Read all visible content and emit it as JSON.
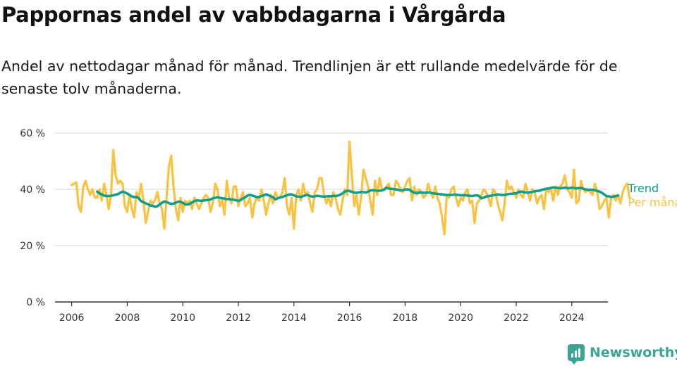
{
  "header": {
    "title": "Pappornas andel av vabbdagarna i Vårgårda",
    "subtitle": "Andel av nettodagar månad för månad. Trendlinjen är ett rullande medelvärde för de senaste tolv månaderna."
  },
  "footer": {
    "brand": "Newsworthy",
    "brand_icon": "bar-chart-speech-bubble-icon"
  },
  "colors": {
    "trend": "#139e8c",
    "monthly": "#f9c240",
    "grid": "#dddddd",
    "axis": "#333333",
    "brand": "#3aa594"
  },
  "chart_data": {
    "type": "line",
    "x_unit": "year (decimal)",
    "xlim": [
      2005.4,
      2025.3
    ],
    "ylim": [
      0,
      60
    ],
    "x_ticks": [
      "2006",
      "2008",
      "2010",
      "2012",
      "2014",
      "2016",
      "2018",
      "2020",
      "2022",
      "2024"
    ],
    "y_ticks": [
      "0 %",
      "20 %",
      "40 %",
      "60 %"
    ],
    "y_tick_values": [
      0,
      20,
      40,
      60
    ],
    "grid": true,
    "legend_placement": "right, at line ends",
    "series": [
      {
        "name": "Per månad",
        "x_start": 2006.0,
        "x_step": 0.08333,
        "values": [
          41.5,
          42,
          42.5,
          34,
          32,
          41,
          43,
          40,
          38,
          40,
          37,
          37,
          40,
          36,
          42,
          38,
          33,
          38,
          54,
          45,
          42,
          43,
          42,
          34,
          32,
          38,
          33,
          30,
          39,
          37,
          42,
          36,
          28,
          32,
          36,
          35,
          36,
          39,
          35,
          33,
          26,
          37,
          48,
          52,
          41,
          33,
          29,
          37,
          32,
          36,
          35,
          36,
          33,
          37,
          35,
          33,
          35,
          37,
          38,
          37,
          32,
          35,
          42,
          40,
          34,
          36,
          31,
          43,
          37,
          35,
          41,
          41,
          34,
          37,
          39,
          34,
          35,
          37,
          30,
          35,
          37,
          36,
          40,
          36,
          31,
          35,
          38,
          35,
          39,
          37,
          37,
          39,
          44,
          34,
          31,
          37,
          26,
          38,
          40,
          36,
          42,
          38,
          39,
          35,
          32,
          39,
          40,
          44,
          44,
          38,
          35,
          37,
          34,
          39,
          37,
          33,
          31,
          36,
          40,
          38,
          57,
          45,
          34,
          38,
          31,
          37,
          47,
          44,
          41,
          36,
          31,
          43,
          38,
          44,
          40,
          40,
          41,
          42,
          38,
          38,
          43,
          42,
          40,
          39,
          41,
          43,
          44,
          36,
          41,
          38,
          40,
          39,
          37,
          38,
          42,
          39,
          37,
          41,
          37,
          35,
          30,
          24,
          38,
          37,
          40,
          41,
          37,
          34,
          37,
          36,
          39,
          40,
          35,
          36,
          28,
          35,
          36,
          38,
          40,
          39,
          37,
          34,
          40,
          39,
          35,
          32,
          29,
          35,
          43,
          40,
          41,
          39,
          37,
          40,
          38,
          37,
          42,
          39,
          36,
          40,
          39,
          35,
          37,
          38,
          33,
          40,
          39,
          40,
          36,
          41,
          38,
          41,
          42,
          45,
          40,
          39,
          37,
          47,
          35,
          36,
          43,
          40,
          39,
          40,
          39,
          38,
          42,
          39,
          33,
          34,
          36,
          37,
          30,
          37,
          38,
          36,
          38,
          35,
          39,
          41,
          42,
          37
        ]
      },
      {
        "name": "Trend",
        "x_start": 2006.9167,
        "x_step": 0.08333,
        "values": [
          39.2,
          38.6,
          38.2,
          37.8,
          37.6,
          37.6,
          37.7,
          37.9,
          38.1,
          38.3,
          38.8,
          39.2,
          38.9,
          38.5,
          38.0,
          37.5,
          37.2,
          37.3,
          36.8,
          35.8,
          35.4,
          35.0,
          34.7,
          34.2,
          34.2,
          33.8,
          34.0,
          34.6,
          35.2,
          35.7,
          35.5,
          35.1,
          34.8,
          34.9,
          35.3,
          35.6,
          35.6,
          35.2,
          34.7,
          34.6,
          34.8,
          35.4,
          35.8,
          36.1,
          36.0,
          35.9,
          36.0,
          36.2,
          36.2,
          36.4,
          36.8,
          37.0,
          37.2,
          37.0,
          36.8,
          36.7,
          36.5,
          36.6,
          36.4,
          36.3,
          36.1,
          35.9,
          36.2,
          36.8,
          37.2,
          37.8,
          38.0,
          37.8,
          37.5,
          37.2,
          37.3,
          37.6,
          37.9,
          38.2,
          37.9,
          37.5,
          37.2,
          36.4,
          36.8,
          37.1,
          37.3,
          37.6,
          37.9,
          38.2,
          38.2,
          37.9,
          37.5,
          37.4,
          37.3,
          37.6,
          37.9,
          38.0,
          37.6,
          37.4,
          37.5,
          37.7,
          37.6,
          37.5,
          37.4,
          37.5,
          37.6,
          37.5,
          37.7,
          37.6,
          37.8,
          38.1,
          38.6,
          39.2,
          39.5,
          39.4,
          39.1,
          38.9,
          38.8,
          38.9,
          39.1,
          39.0,
          38.9,
          39.2,
          39.6,
          39.7,
          39.6,
          39.5,
          39.5,
          39.6,
          39.9,
          40.6,
          40.3,
          40.2,
          40.1,
          40.0,
          39.8,
          39.6,
          39.7,
          39.9,
          40.0,
          39.8,
          39.2,
          38.8,
          38.7,
          38.8,
          38.9,
          38.8,
          38.8,
          38.9,
          38.8,
          38.6,
          38.5,
          38.4,
          38.3,
          38.2,
          38.1,
          38.0,
          38.0,
          38.0,
          38.1,
          38.1,
          38.0,
          37.9,
          37.9,
          37.9,
          37.8,
          37.7,
          37.6,
          37.8,
          37.9,
          37.6,
          36.8,
          37.1,
          37.4,
          37.6,
          37.7,
          37.9,
          38.0,
          38.2,
          38.1,
          38.0,
          38.0,
          38.2,
          38.4,
          38.4,
          38.5,
          38.6,
          39.0,
          39.2,
          39.1,
          38.9,
          38.8,
          39.0,
          39.1,
          39.3,
          39.4,
          39.5,
          39.8,
          40.0,
          40.2,
          40.3,
          40.5,
          40.7,
          40.6,
          40.5,
          40.4,
          40.5,
          40.6,
          40.5,
          40.4,
          40.6,
          40.5,
          40.3,
          40.4,
          40.5,
          40.2,
          40.0,
          39.8,
          39.9,
          39.8,
          39.7,
          39.4,
          39.2,
          38.8,
          38.2,
          37.6,
          37.5,
          37.3,
          37.4,
          37.6,
          37.8
        ]
      }
    ]
  }
}
